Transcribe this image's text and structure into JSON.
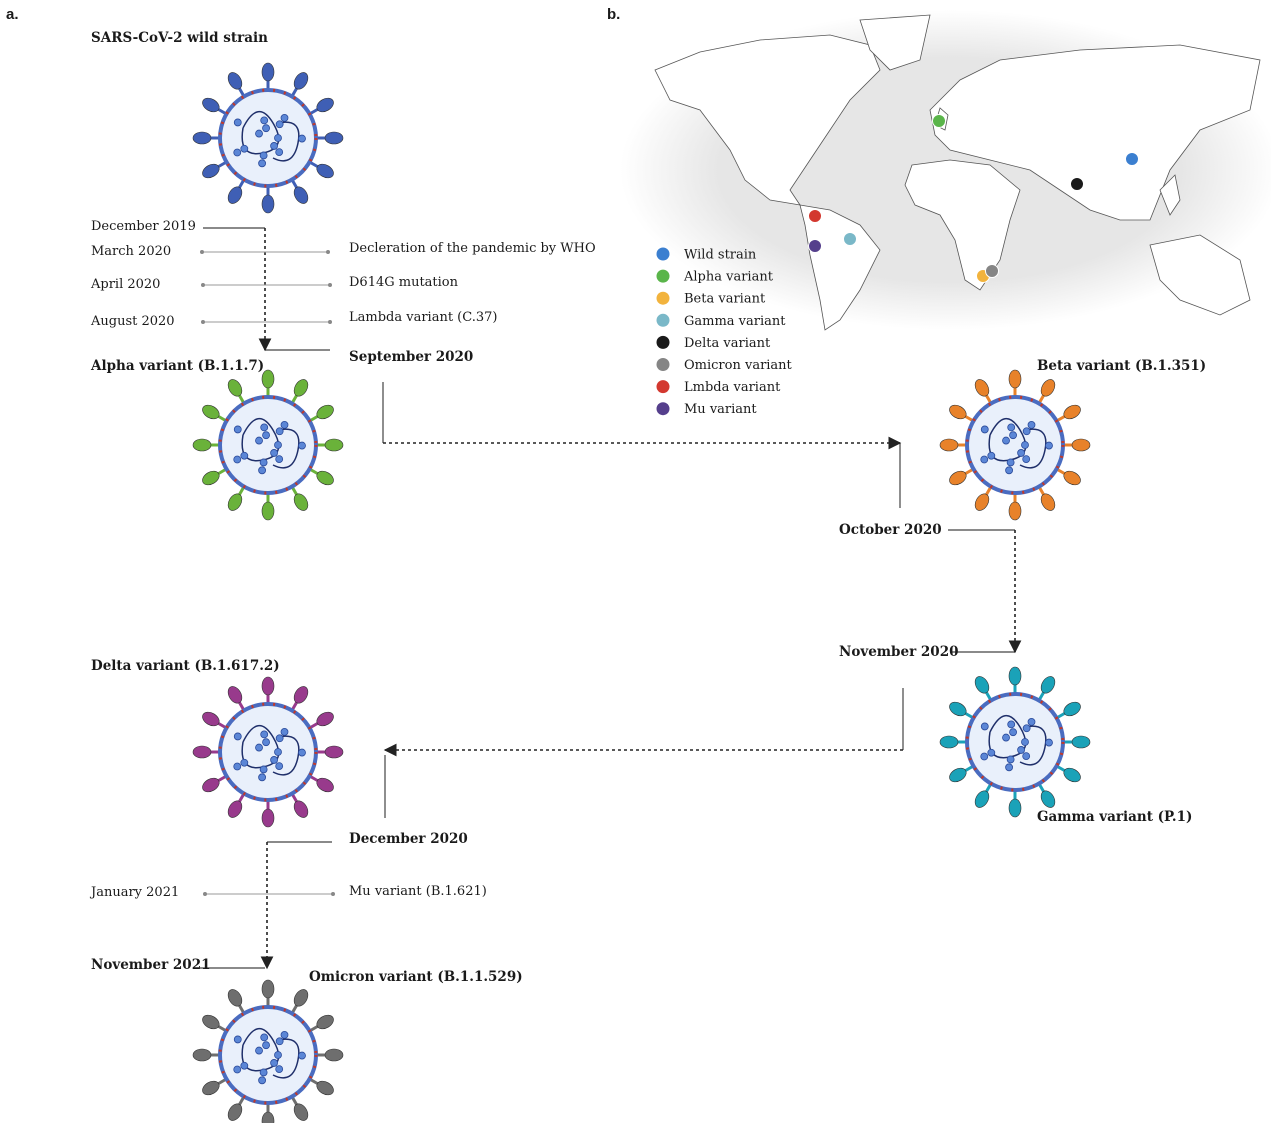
{
  "panels": {
    "a": "a.",
    "b": "b."
  },
  "viruses": [
    {
      "name": "SARS-CoV-2 wild strain",
      "color": "#3f5fb5"
    },
    {
      "name": "Alpha variant (B.1.1.7)",
      "color": "#6ab23a"
    },
    {
      "name": "Beta variant (B.1.351)",
      "color": "#e8822a"
    },
    {
      "name": "Gamma variant (P.1)",
      "color": "#1aa2b8"
    },
    {
      "name": "Delta variant (B.1.617.2)",
      "color": "#983a8c"
    },
    {
      "name": "Omicron variant (B.1.1.529)",
      "color": "#6e6e6e"
    }
  ],
  "timeline": {
    "dates": [
      "December 2019",
      "March 2020",
      "April 2020",
      "August 2020",
      "September 2020",
      "October 2020",
      "November 2020",
      "December 2020",
      "January 2021",
      "November 2021"
    ],
    "events": [
      "Decleration of the pandemic by WHO",
      "D614G mutation",
      "Lambda variant (C.37)",
      "Mu variant (B.1.621)"
    ]
  },
  "legend": [
    {
      "label": "Wild strain",
      "color": "#3b7fd0"
    },
    {
      "label": "Alpha variant",
      "color": "#5ab54a"
    },
    {
      "label": "Beta variant",
      "color": "#f2b33d"
    },
    {
      "label": "Gamma variant",
      "color": "#7ab8c8"
    },
    {
      "label": "Delta variant",
      "color": "#1a1a1a"
    },
    {
      "label": "Omicron variant",
      "color": "#858585"
    },
    {
      "label": "Lmbda variant",
      "color": "#d3382f"
    },
    {
      "label": "Mu variant",
      "color": "#553f8c"
    }
  ]
}
